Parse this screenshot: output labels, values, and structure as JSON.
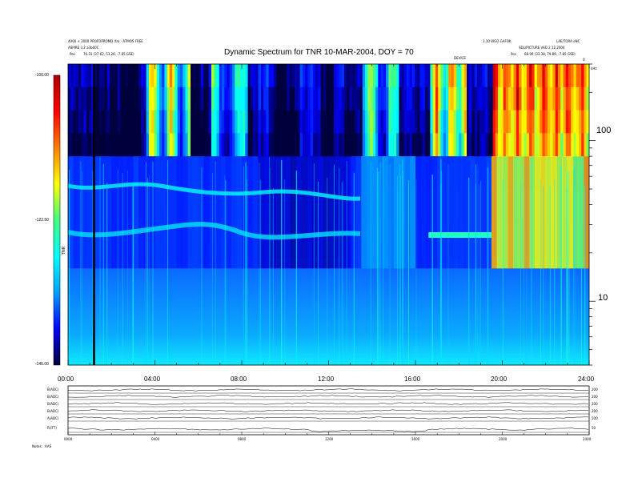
{
  "header": {
    "left_line1": "4000 + 2000 PROFOPROMD (fa) - ATMOS FREE",
    "left_line2": "ASPIRE 3.2 a3b00C",
    "left_line3_label": "Pos",
    "left_line3_value": "76.31 (37.62, 53.26, -7.85 GSE)",
    "right_line1": "1.10 VIGO GAFOK",
    "right_line1b": "LAE/TORA eNC",
    "right_line2": "SDL/PICTURE VAD 2 12,2000",
    "right_line3_label": "Pos",
    "right_line3_value": "68.99 (33.38, 79.89, -7.85 GSE)",
    "center_tag": "DEVICE",
    "right_small": "0"
  },
  "chart_data": {
    "type": "heatmap",
    "title": "Dynamic Spectrum for TNR 10-MAR-2004, DOY = 70",
    "colorbar": {
      "label": "TNR",
      "ticks": [
        "-100.00",
        "-122.50",
        "-145.00"
      ],
      "range": [
        -145.0,
        -100.0
      ],
      "colors": [
        "#00003c",
        "#0000ff",
        "#00a0ff",
        "#00ffff",
        "#40ff80",
        "#ffff00",
        "#ff8000",
        "#ff0000",
        "#b00000"
      ]
    },
    "x_axis": {
      "ticks": [
        "00:00",
        "04:00",
        "08:00",
        "12:00",
        "16:00",
        "20:00",
        "24:00"
      ],
      "range_hours": [
        0,
        24
      ]
    },
    "y_axis": {
      "unit": "kHz",
      "scale": "log",
      "ticks": [
        "100",
        "10"
      ],
      "range": [
        4,
        300
      ]
    },
    "marker_line_hour": 1.2,
    "hf_band_edges_khz": [
      80,
      16
    ]
  },
  "bottom_panel": {
    "rows": [
      {
        "label": "B(ADC)",
        "right": "200"
      },
      {
        "label": "B(ADC)",
        "right": "200"
      },
      {
        "label": "B(ADC)",
        "right": "200"
      },
      {
        "label": "B(ADC)",
        "right": "200"
      },
      {
        "label": "A(ADC)",
        "right": "500"
      },
      {
        "label": "R(ITT)",
        "right": "50"
      }
    ],
    "x_ticks": [
      "0000",
      "0400",
      "0800",
      "1200",
      "1600",
      "2000",
      "2400"
    ],
    "footer_label": "Notes:",
    "footer_value": "AAS"
  }
}
